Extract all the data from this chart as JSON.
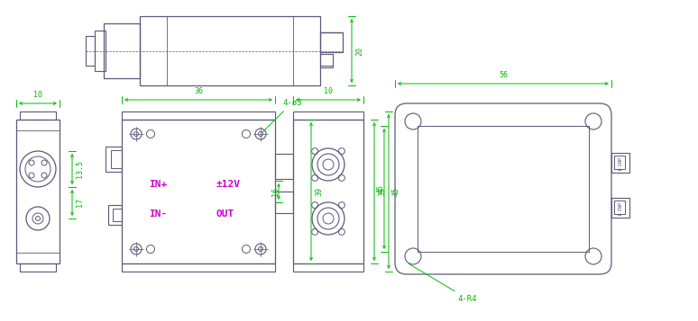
{
  "bg_color": "#ffffff",
  "line_color": "#5a5a7a",
  "dim_color": "#00bb00",
  "label_color": "#cc00cc",
  "fig_width": 7.74,
  "fig_height": 3.57,
  "dpi": 100,
  "dims": {
    "top_h": "20",
    "side_w": "10",
    "side_h1": "13.5",
    "side_h2": "17",
    "front_w": "36",
    "front_h": "39",
    "front_holes": "4-ø3",
    "mid_w": "10",
    "mid_h1": "16",
    "mid_h2": "39",
    "mid_h3": "45",
    "back_w": "56",
    "back_r": "4-R4"
  },
  "labels": {
    "in_plus": "IN+",
    "in_minus": "IN-",
    "power": "±12V",
    "output": "OUT"
  }
}
